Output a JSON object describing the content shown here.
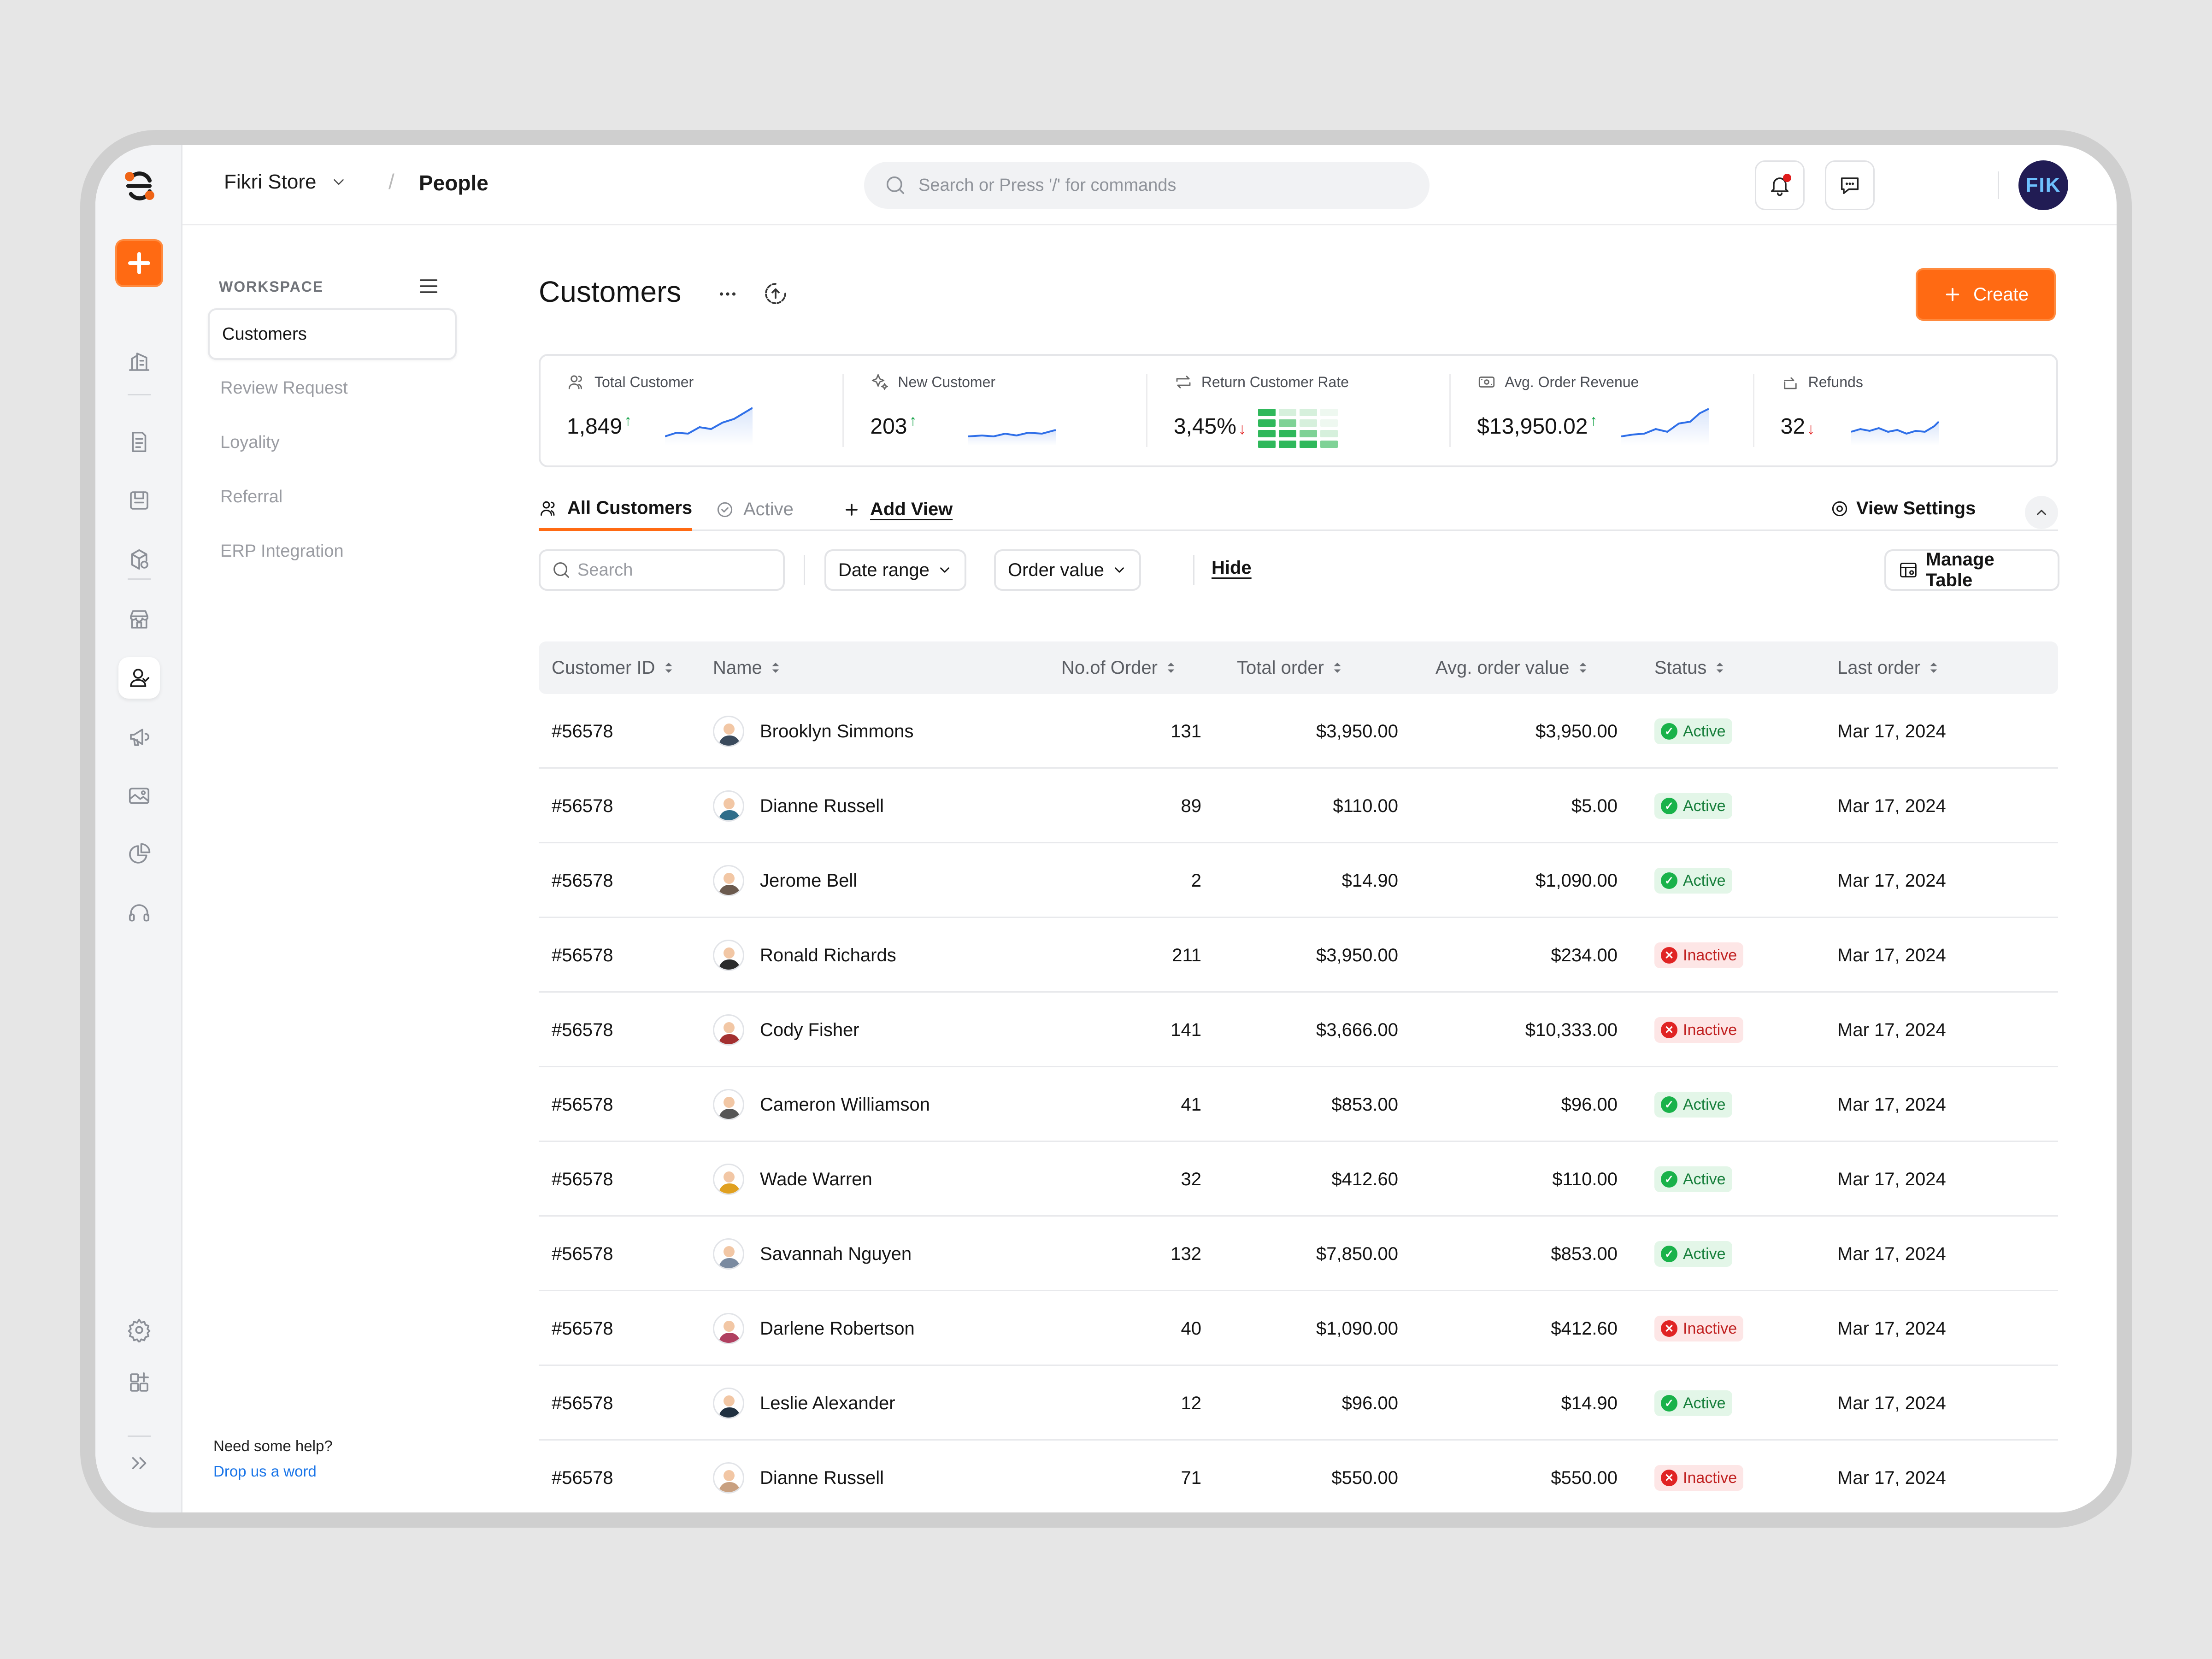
{
  "app": {
    "store_name": "Fikri Store",
    "breadcrumb_sep": "/",
    "section": "People"
  },
  "search_top": {
    "placeholder": "Search or Press '/' for commands"
  },
  "user": {
    "initials": "FIK"
  },
  "sidebar": {
    "heading": "WORKSPACE",
    "items": [
      {
        "label": "Customers"
      },
      {
        "label": "Review Request"
      },
      {
        "label": "Loyality"
      },
      {
        "label": "Referral"
      },
      {
        "label": "ERP Integration"
      }
    ],
    "help_text": "Need some help?",
    "help_link": "Drop us a word"
  },
  "page": {
    "title": "Customers",
    "create_label": "Create"
  },
  "stats": [
    {
      "label": "Total Customer",
      "value": "1,849",
      "trend": "up",
      "icon": "users-icon"
    },
    {
      "label": "New Customer",
      "value": "203",
      "trend": "up",
      "icon": "sparkle-icon"
    },
    {
      "label": "Return Customer Rate",
      "value": "3,45%",
      "trend": "down",
      "icon": "repeat-icon"
    },
    {
      "label": "Avg. Order Revenue",
      "value": "$13,950.02",
      "trend": "up",
      "icon": "revenue-icon"
    },
    {
      "label": "Refunds",
      "value": "32",
      "trend": "down",
      "icon": "refund-icon"
    }
  ],
  "tabs": {
    "all": "All Customers",
    "active": "Active",
    "add_view": "Add View",
    "view_settings": "View Settings"
  },
  "filters": {
    "search_placeholder": "Search",
    "date_range": "Date range",
    "order_value": "Order value",
    "hide": "Hide",
    "manage_table": "Manage Table"
  },
  "colors": {
    "accent": "#FF6A13",
    "active_green": "#19B24A",
    "inactive_red": "#E02424"
  },
  "table": {
    "columns": [
      "Customer ID",
      "Name",
      "No.of Order",
      "Total order",
      "Avg. order value",
      "Status",
      "Last order"
    ],
    "rows": [
      {
        "id": "#56578",
        "name": "Brooklyn Simmons",
        "orders": "131",
        "total": "$3,950.00",
        "avg": "$3,950.00",
        "status": "Active",
        "last": "Mar 17, 2024"
      },
      {
        "id": "#56578",
        "name": "Dianne Russell",
        "orders": "89",
        "total": "$110.00",
        "avg": "$5.00",
        "status": "Active",
        "last": "Mar 17, 2024"
      },
      {
        "id": "#56578",
        "name": "Jerome Bell",
        "orders": "2",
        "total": "$14.90",
        "avg": "$1,090.00",
        "status": "Active",
        "last": "Mar 17, 2024"
      },
      {
        "id": "#56578",
        "name": "Ronald Richards",
        "orders": "211",
        "total": "$3,950.00",
        "avg": "$234.00",
        "status": "Inactive",
        "last": "Mar 17, 2024"
      },
      {
        "id": "#56578",
        "name": "Cody Fisher",
        "orders": "141",
        "total": "$3,666.00",
        "avg": "$10,333.00",
        "status": "Inactive",
        "last": "Mar 17, 2024"
      },
      {
        "id": "#56578",
        "name": "Cameron Williamson",
        "orders": "41",
        "total": "$853.00",
        "avg": "$96.00",
        "status": "Active",
        "last": "Mar 17, 2024"
      },
      {
        "id": "#56578",
        "name": "Wade Warren",
        "orders": "32",
        "total": "$412.60",
        "avg": "$110.00",
        "status": "Active",
        "last": "Mar 17, 2024"
      },
      {
        "id": "#56578",
        "name": "Savannah Nguyen",
        "orders": "132",
        "total": "$7,850.00",
        "avg": "$853.00",
        "status": "Active",
        "last": "Mar 17, 2024"
      },
      {
        "id": "#56578",
        "name": "Darlene Robertson",
        "orders": "40",
        "total": "$1,090.00",
        "avg": "$412.60",
        "status": "Inactive",
        "last": "Mar 17, 2024"
      },
      {
        "id": "#56578",
        "name": "Leslie Alexander",
        "orders": "12",
        "total": "$96.00",
        "avg": "$14.90",
        "status": "Active",
        "last": "Mar 17, 2024"
      },
      {
        "id": "#56578",
        "name": "Dianne Russell",
        "orders": "71",
        "total": "$550.00",
        "avg": "$550.00",
        "status": "Inactive",
        "last": "Mar 17, 2024"
      }
    ]
  }
}
